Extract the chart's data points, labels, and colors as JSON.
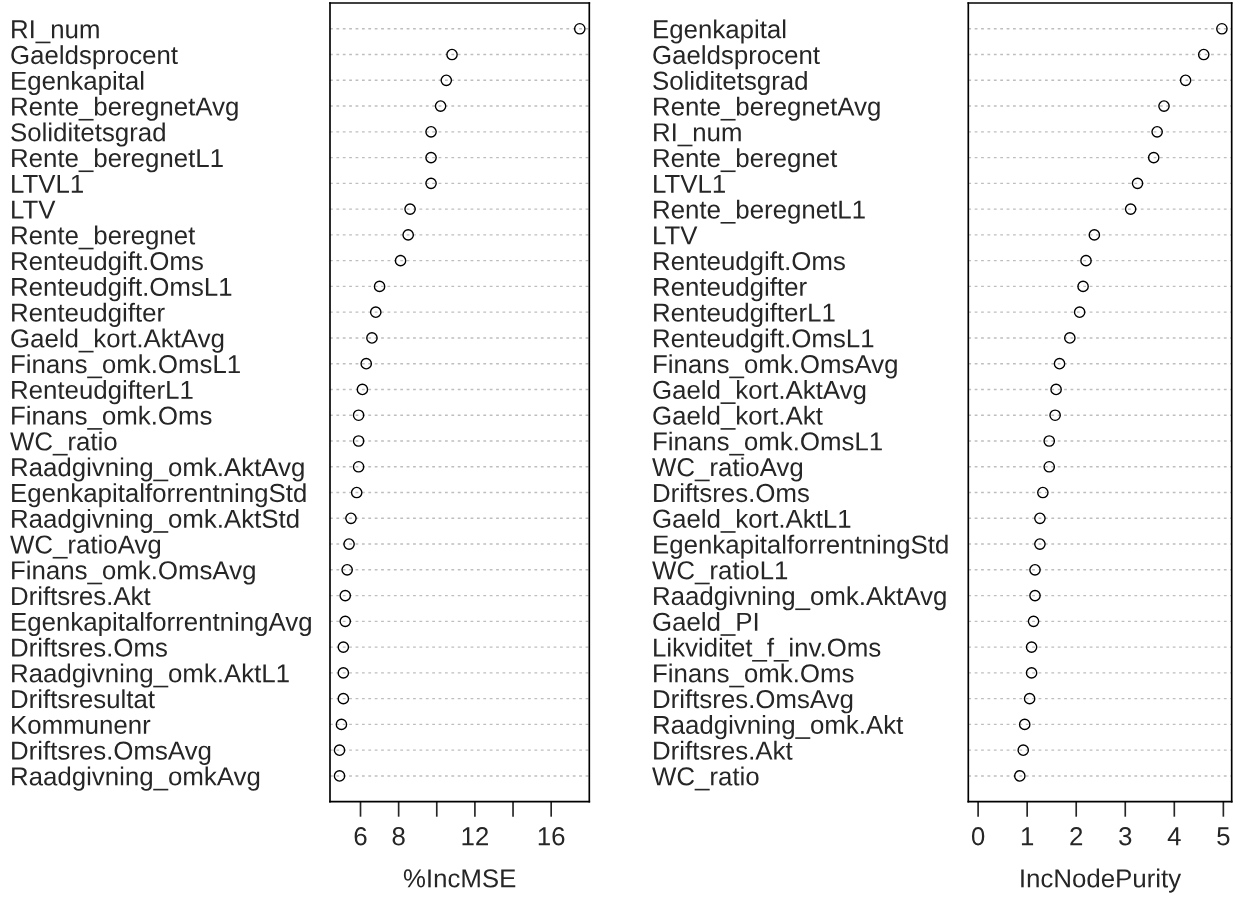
{
  "chart_data": [
    {
      "type": "scatter",
      "orientation": "horizontal",
      "marker": "circle",
      "color": "#000000",
      "grid": "y",
      "xlabel": "%IncMSE",
      "categories": [
        "RI_num",
        "Gaeldsprocent",
        "Egenkapital",
        "Rente_beregnetAvg",
        "Soliditetsgrad",
        "Rente_beregnetL1",
        "LTVL1",
        "LTV",
        "Rente_beregnet",
        "Renteudgift.Oms",
        "Renteudgift.OmsL1",
        "Renteudgifter",
        "Gaeld_kort.AktAvg",
        "Finans_omk.OmsL1",
        "RenteudgifterL1",
        "Finans_omk.Oms",
        "WC_ratio",
        "Raadgivning_omk.AktAvg",
        "EgenkapitalforrentningStd",
        "Raadgivning_omk.AktStd",
        "WC_ratioAvg",
        "Finans_omk.OmsAvg",
        "Driftsres.Akt",
        "EgenkapitalforrentningAvg",
        "Driftsres.Oms",
        "Raadgivning_omk.AktL1",
        "Driftsresultat",
        "Kommunenr",
        "Driftsres.OmsAvg",
        "Raadgivning_omkAvg"
      ],
      "values": [
        17.5,
        10.8,
        10.5,
        10.2,
        9.7,
        9.7,
        9.7,
        8.6,
        8.5,
        8.1,
        7.0,
        6.8,
        6.6,
        6.3,
        6.1,
        5.9,
        5.9,
        5.9,
        5.8,
        5.5,
        5.4,
        5.3,
        5.2,
        5.2,
        5.1,
        5.1,
        5.1,
        5.0,
        4.9,
        4.9
      ],
      "xlim": [
        4.4,
        18.0
      ],
      "xticks": [
        6,
        8,
        {
          "value": 10,
          "label": null
        },
        12,
        {
          "value": 14,
          "label": null
        },
        16
      ]
    },
    {
      "type": "scatter",
      "orientation": "horizontal",
      "marker": "circle",
      "color": "#000000",
      "grid": "y",
      "xlabel": "IncNodePurity",
      "categories": [
        "Egenkapital",
        "Gaeldsprocent",
        "Soliditetsgrad",
        "Rente_beregnetAvg",
        "RI_num",
        "Rente_beregnet",
        "LTVL1",
        "Rente_beregnetL1",
        "LTV",
        "Renteudgift.Oms",
        "Renteudgifter",
        "RenteudgifterL1",
        "Renteudgift.OmsL1",
        "Finans_omk.OmsAvg",
        "Gaeld_kort.AktAvg",
        "Gaeld_kort.Akt",
        "Finans_omk.OmsL1",
        "WC_ratioAvg",
        "Driftsres.Oms",
        "Gaeld_kort.AktL1",
        "EgenkapitalforrentningStd",
        "WC_ratioL1",
        "Raadgivning_omk.AktAvg",
        "Gaeld_PI",
        "Likviditet_f_inv.Oms",
        "Finans_omk.Oms",
        "Driftsres.OmsAvg",
        "Raadgivning_omk.Akt",
        "Driftsres.Akt",
        "WC_ratio"
      ],
      "values": [
        4.97,
        4.6,
        4.23,
        3.79,
        3.65,
        3.58,
        3.25,
        3.11,
        2.37,
        2.2,
        2.14,
        2.07,
        1.87,
        1.66,
        1.59,
        1.57,
        1.45,
        1.45,
        1.32,
        1.26,
        1.26,
        1.16,
        1.16,
        1.13,
        1.09,
        1.09,
        1.05,
        0.95,
        0.92,
        0.85
      ],
      "xlim": [
        -0.2,
        5.17
      ],
      "xticks": [
        0,
        1,
        2,
        3,
        4,
        5
      ]
    }
  ]
}
